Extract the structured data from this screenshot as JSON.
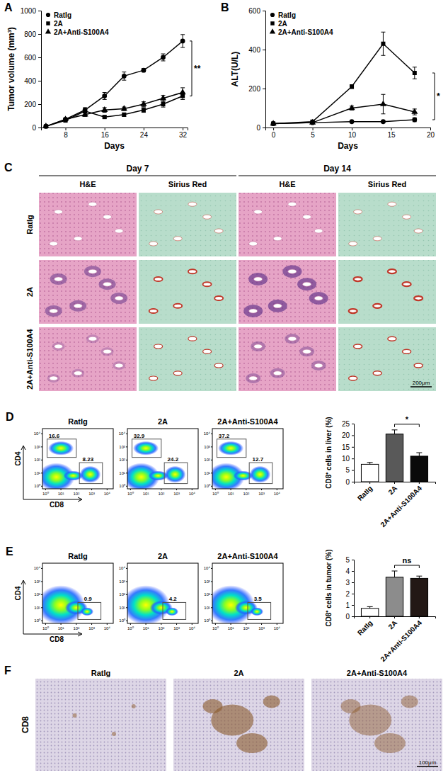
{
  "chart_data": [
    {
      "panel": "A",
      "type": "line",
      "x_label": "Days",
      "y_label": "Tumor volume (mm³)",
      "x": [
        4,
        8,
        12,
        16,
        20,
        24,
        28,
        32
      ],
      "xlim": [
        3,
        33
      ],
      "xticks": [
        8,
        16,
        24,
        32
      ],
      "ylim": [
        0,
        1000
      ],
      "yticks": [
        0,
        200,
        400,
        600,
        800,
        1000
      ],
      "legend": "upper left",
      "series": [
        {
          "name": "RatIg",
          "marker": "circle",
          "color": "#000000",
          "values": [
            10,
            70,
            150,
            270,
            440,
            490,
            600,
            740
          ],
          "errors": [
            5,
            10,
            20,
            30,
            35,
            15,
            30,
            55
          ]
        },
        {
          "name": "2A",
          "marker": "square",
          "color": "#000000",
          "values": [
            10,
            60,
            140,
            90,
            110,
            150,
            200,
            270
          ],
          "errors": [
            5,
            10,
            15,
            10,
            15,
            20,
            25,
            30
          ]
        },
        {
          "name": "2A+Anti-S100A4",
          "marker": "triangle",
          "color": "#000000",
          "values": [
            10,
            70,
            110,
            150,
            160,
            200,
            250,
            300
          ],
          "errors": [
            5,
            10,
            15,
            20,
            15,
            20,
            25,
            40
          ]
        }
      ],
      "annotations": [
        "**"
      ]
    },
    {
      "panel": "B",
      "type": "line",
      "x_label": "Days",
      "y_label": "ALT(U/L)",
      "x": [
        0,
        5,
        10,
        14,
        18
      ],
      "xlim": [
        -1,
        20
      ],
      "xticks": [
        0,
        5,
        10,
        15,
        20
      ],
      "ylim": [
        0,
        600
      ],
      "yticks": [
        0,
        200,
        400,
        600
      ],
      "legend": "upper left",
      "series": [
        {
          "name": "RatIg",
          "marker": "circle",
          "color": "#000000",
          "values": [
            20,
            25,
            30,
            30,
            40
          ],
          "errors": [
            3,
            3,
            5,
            5,
            10
          ]
        },
        {
          "name": "2A",
          "marker": "square",
          "color": "#000000",
          "values": [
            20,
            30,
            210,
            430,
            280
          ],
          "errors": [
            3,
            5,
            10,
            60,
            30
          ]
        },
        {
          "name": "2A+Anti-S100A4",
          "marker": "triangle",
          "color": "#000000",
          "values": [
            20,
            25,
            100,
            120,
            80
          ],
          "errors": [
            3,
            5,
            10,
            50,
            15
          ]
        }
      ],
      "annotations": [
        "*"
      ]
    },
    {
      "panel": "D",
      "type": "bar",
      "y_label": "CD8⁺ cells in liver (%)",
      "categories": [
        "RatIg",
        "2A",
        "2A+Anti-S100A4"
      ],
      "values": [
        7.5,
        20.5,
        11
      ],
      "errors": [
        0.8,
        1.8,
        1.5
      ],
      "colors": [
        "#ffffff",
        "#595959",
        "#0a0a0a"
      ],
      "ylim": [
        0,
        25
      ],
      "yticks": [
        0,
        5,
        10,
        15,
        20,
        25
      ],
      "annotations": [
        "*"
      ]
    },
    {
      "panel": "E",
      "type": "bar",
      "y_label": "CD8⁺ cells in tumor (%)",
      "categories": [
        "RatIg",
        "2A",
        "2A+Anti-S100A4"
      ],
      "values": [
        0.7,
        3.45,
        3.35
      ],
      "errors": [
        0.15,
        0.55,
        0.2
      ],
      "colors": [
        "#ffffff",
        "#8c8c8c",
        "#231815"
      ],
      "ylim": [
        0,
        5
      ],
      "yticks": [
        0,
        1,
        2,
        3,
        4,
        5
      ],
      "annotations": [
        "ns"
      ]
    }
  ],
  "figure": {
    "panel_c": {
      "label": "C",
      "days": [
        "Day 7",
        "Day 14"
      ],
      "stains": [
        "H&E",
        "Sirius Red"
      ],
      "rows": [
        "RatIg",
        "2A",
        "2A+Anti-S100A4"
      ],
      "scale_bar": "200μm"
    },
    "panel_d": {
      "flow": {
        "x_label": "CD8",
        "y_label": "CD4",
        "ticks": [
          {
            "value": 0,
            "label": "10⁰"
          },
          {
            "value": 1,
            "label": "10¹"
          },
          {
            "value": 2,
            "label": "10²"
          },
          {
            "value": 3,
            "label": "10³"
          },
          {
            "value": 4,
            "label": "10⁴"
          }
        ],
        "groups": [
          {
            "name": "RatIg",
            "cd4": 16.6,
            "cd8": 8.23
          },
          {
            "name": "2A",
            "cd4": 32.9,
            "cd8": 24.2
          },
          {
            "name": "2A+Anti-S100A4",
            "cd4": 37.2,
            "cd8": 12.7
          }
        ]
      }
    },
    "panel_e": {
      "flow": {
        "x_label": "CD8",
        "y_label": "CD4",
        "ticks": [
          {
            "value": 0,
            "label": "10⁰"
          },
          {
            "value": 1,
            "label": "10¹"
          },
          {
            "value": 2,
            "label": "10²"
          },
          {
            "value": 3,
            "label": "10³"
          },
          {
            "value": 4,
            "label": "10⁴"
          }
        ],
        "groups": [
          {
            "name": "RatIg",
            "cd8": 0.9
          },
          {
            "name": "2A",
            "cd8": 4.2
          },
          {
            "name": "2A+Anti-S100A4",
            "cd8": 3.5
          }
        ]
      }
    },
    "panel_f": {
      "label": "F",
      "marker": "CD8",
      "groups": [
        "RatIg",
        "2A",
        "2A+Anti-S100A4"
      ],
      "scale_bar": "100μm"
    }
  }
}
